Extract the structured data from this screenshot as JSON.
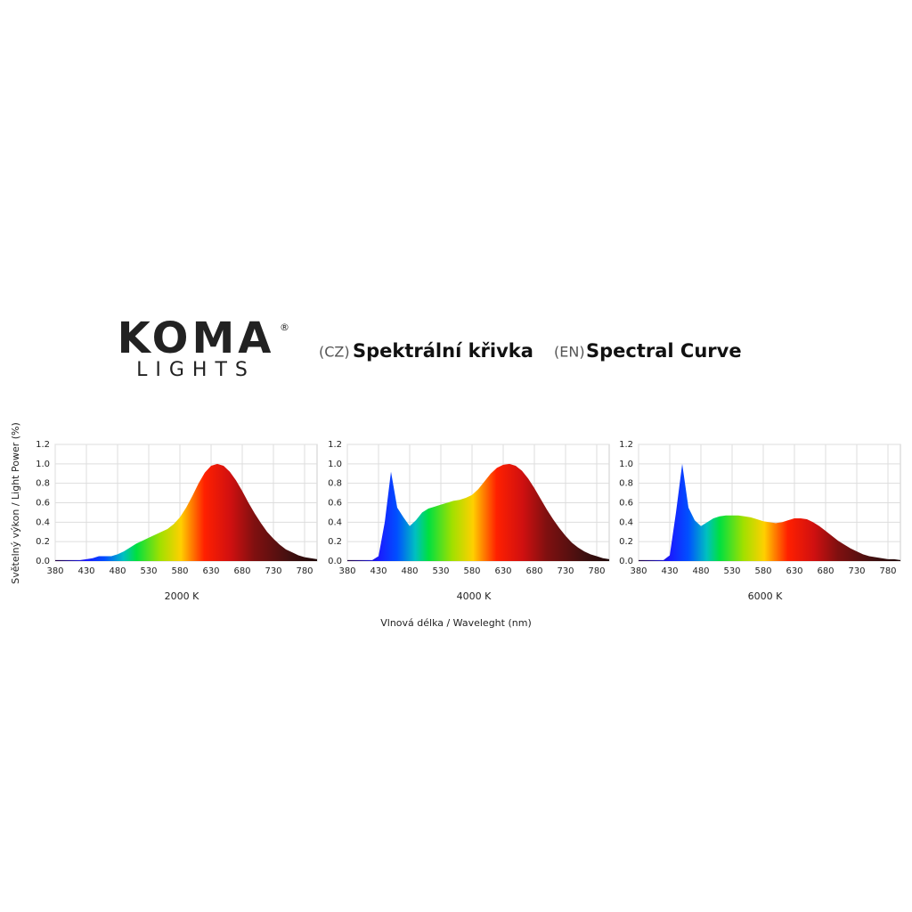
{
  "header": {
    "logo_top": "KOMA",
    "logo_bottom": "LIGHTS",
    "logo_mark": "®",
    "tag_cz": "(CZ)",
    "title_cz": "Spektrální křivka",
    "tag_en": "(EN)",
    "title_en": "Spectral Curve"
  },
  "shared_axis": {
    "y_label": "Světelný výkon / Light Power (%)",
    "x_label": "Vlnová délka / Waveleght (nm)"
  },
  "chart_data": [
    {
      "type": "area",
      "title": "2000 K",
      "x": [
        380,
        390,
        400,
        410,
        420,
        430,
        440,
        450,
        460,
        470,
        480,
        490,
        500,
        510,
        520,
        530,
        540,
        550,
        560,
        570,
        580,
        590,
        600,
        610,
        620,
        630,
        640,
        650,
        660,
        670,
        680,
        690,
        700,
        710,
        720,
        730,
        740,
        750,
        760,
        770,
        780,
        790,
        800
      ],
      "values": [
        0.01,
        0.01,
        0.01,
        0.01,
        0.01,
        0.02,
        0.03,
        0.05,
        0.05,
        0.05,
        0.07,
        0.1,
        0.14,
        0.18,
        0.21,
        0.24,
        0.27,
        0.3,
        0.33,
        0.38,
        0.45,
        0.55,
        0.67,
        0.8,
        0.91,
        0.98,
        1.0,
        0.98,
        0.92,
        0.83,
        0.72,
        0.6,
        0.49,
        0.39,
        0.3,
        0.23,
        0.17,
        0.12,
        0.09,
        0.06,
        0.04,
        0.03,
        0.02
      ],
      "xlim": [
        380,
        800
      ],
      "ylim": [
        0,
        1.2
      ],
      "xticks": [
        380,
        430,
        480,
        530,
        580,
        630,
        680,
        730,
        780
      ],
      "yticks": [
        {
          "value": 0,
          "label": "0.0"
        },
        0.2,
        0.4,
        0.6,
        0.8,
        {
          "value": 1,
          "label": "1.0"
        },
        1.2
      ],
      "grid": true
    },
    {
      "type": "area",
      "title": "4000 K",
      "x": [
        380,
        390,
        400,
        410,
        420,
        430,
        440,
        450,
        460,
        470,
        480,
        490,
        500,
        510,
        520,
        530,
        540,
        550,
        560,
        570,
        580,
        590,
        600,
        610,
        620,
        630,
        640,
        650,
        660,
        670,
        680,
        690,
        700,
        710,
        720,
        730,
        740,
        750,
        760,
        770,
        780,
        790,
        800
      ],
      "values": [
        0.01,
        0.01,
        0.01,
        0.01,
        0.01,
        0.05,
        0.4,
        0.92,
        0.55,
        0.45,
        0.36,
        0.42,
        0.5,
        0.54,
        0.56,
        0.58,
        0.6,
        0.62,
        0.63,
        0.65,
        0.68,
        0.74,
        0.82,
        0.9,
        0.96,
        0.99,
        1.0,
        0.98,
        0.93,
        0.85,
        0.75,
        0.64,
        0.53,
        0.43,
        0.34,
        0.26,
        0.19,
        0.14,
        0.1,
        0.07,
        0.05,
        0.03,
        0.02
      ],
      "xlim": [
        380,
        800
      ],
      "ylim": [
        0,
        1.2
      ],
      "xticks": [
        380,
        430,
        480,
        530,
        580,
        630,
        680,
        730,
        780
      ],
      "yticks": [
        {
          "value": 0,
          "label": "0.0"
        },
        0.2,
        0.4,
        0.6,
        0.8,
        {
          "value": 1,
          "label": "1.0"
        },
        1.2
      ],
      "grid": true
    },
    {
      "type": "area",
      "title": "6000 K",
      "x": [
        380,
        390,
        400,
        410,
        420,
        430,
        440,
        450,
        460,
        470,
        480,
        490,
        500,
        510,
        520,
        530,
        540,
        550,
        560,
        570,
        580,
        590,
        600,
        610,
        620,
        630,
        640,
        650,
        660,
        670,
        680,
        690,
        700,
        710,
        720,
        730,
        740,
        750,
        760,
        770,
        780,
        790,
        800
      ],
      "values": [
        0.01,
        0.01,
        0.01,
        0.01,
        0.01,
        0.06,
        0.5,
        1.0,
        0.55,
        0.42,
        0.36,
        0.4,
        0.44,
        0.46,
        0.47,
        0.47,
        0.47,
        0.46,
        0.45,
        0.43,
        0.41,
        0.4,
        0.39,
        0.4,
        0.42,
        0.44,
        0.44,
        0.43,
        0.4,
        0.36,
        0.31,
        0.26,
        0.21,
        0.17,
        0.13,
        0.1,
        0.07,
        0.05,
        0.04,
        0.03,
        0.02,
        0.02,
        0.01
      ],
      "xlim": [
        380,
        800
      ],
      "ylim": [
        0,
        1.2
      ],
      "xticks": [
        380,
        430,
        480,
        530,
        580,
        630,
        680,
        730,
        780
      ],
      "yticks": [
        {
          "value": 0,
          "label": "0.0"
        },
        0.2,
        0.4,
        0.6,
        0.8,
        {
          "value": 1,
          "label": "1.0"
        },
        1.2
      ],
      "grid": true
    }
  ]
}
